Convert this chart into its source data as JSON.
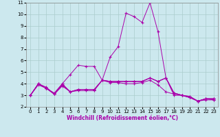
{
  "xlabel": "Windchill (Refroidissement éolien,°C)",
  "ylabel": "",
  "background_color": "#cce8ee",
  "line_color": "#aa00aa",
  "grid_color": "#aacccc",
  "xlim": [
    -0.5,
    23.5
  ],
  "ylim": [
    2,
    11
  ],
  "xticks": [
    0,
    1,
    2,
    3,
    4,
    5,
    6,
    7,
    8,
    9,
    10,
    11,
    12,
    13,
    14,
    15,
    16,
    17,
    18,
    19,
    20,
    21,
    22,
    23
  ],
  "yticks": [
    2,
    3,
    4,
    5,
    6,
    7,
    8,
    9,
    10,
    11
  ],
  "series": [
    [
      3.0,
      4.0,
      3.7,
      3.1,
      4.0,
      4.8,
      5.6,
      5.5,
      5.5,
      4.3,
      6.3,
      7.2,
      10.1,
      9.8,
      9.3,
      11.0,
      8.5,
      4.5,
      3.0,
      3.0,
      2.9,
      2.5,
      2.7,
      2.7
    ],
    [
      3.0,
      4.0,
      3.6,
      3.2,
      4.0,
      3.3,
      3.5,
      3.5,
      3.5,
      4.3,
      4.2,
      4.2,
      4.2,
      4.2,
      4.2,
      4.5,
      4.2,
      4.5,
      3.2,
      3.0,
      2.9,
      2.5,
      2.7,
      2.7
    ],
    [
      3.0,
      4.0,
      3.6,
      3.1,
      3.9,
      3.3,
      3.5,
      3.5,
      3.5,
      4.3,
      4.2,
      4.2,
      4.2,
      4.2,
      4.2,
      4.5,
      4.2,
      4.5,
      3.2,
      3.0,
      2.8,
      2.5,
      2.7,
      2.7
    ],
    [
      3.0,
      4.0,
      3.6,
      3.1,
      3.9,
      3.3,
      3.5,
      3.5,
      3.5,
      4.3,
      4.2,
      4.2,
      4.2,
      4.2,
      4.2,
      4.5,
      4.2,
      4.5,
      3.2,
      3.0,
      2.8,
      2.5,
      2.7,
      2.6
    ],
    [
      3.0,
      3.9,
      3.6,
      3.1,
      3.8,
      3.3,
      3.4,
      3.4,
      3.4,
      4.3,
      4.1,
      4.1,
      4.0,
      4.0,
      4.1,
      4.3,
      3.9,
      3.3,
      3.1,
      3.0,
      2.8,
      2.5,
      2.6,
      2.6
    ]
  ],
  "tick_fontsize": 5,
  "xlabel_fontsize": 5.5,
  "marker": "+",
  "markersize": 2.5,
  "linewidth": 0.7
}
